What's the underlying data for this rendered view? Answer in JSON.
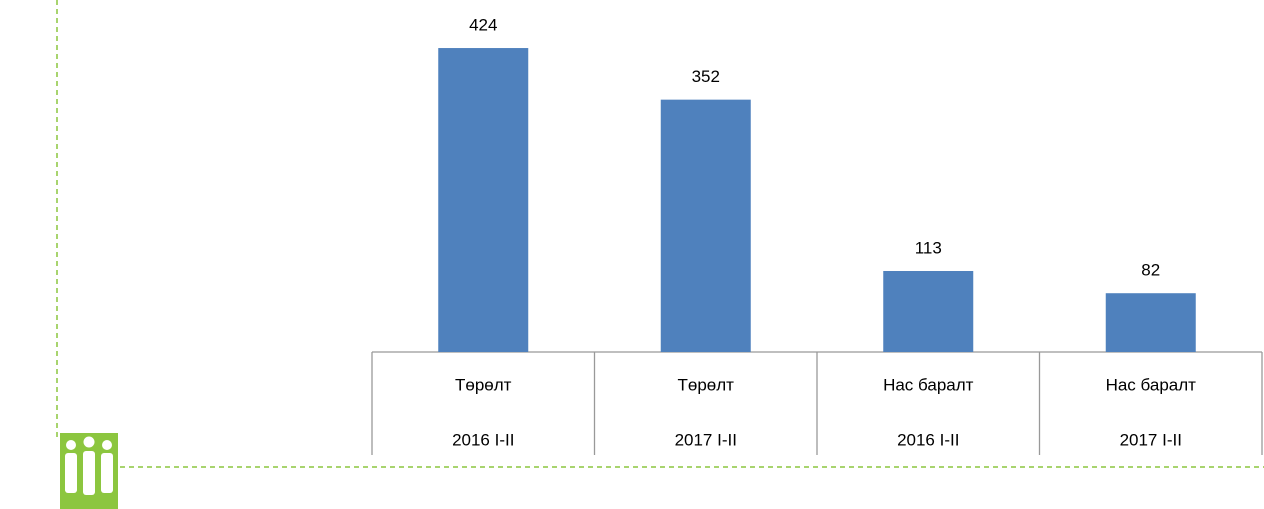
{
  "chart_data": {
    "type": "bar",
    "categories": [
      [
        "Төрөлт",
        "2016 I-II"
      ],
      [
        "Төрөлт",
        "2017 I-II"
      ],
      [
        "Нас баралт",
        "2016 I-II"
      ],
      [
        "Нас баралт",
        "2017 I-II"
      ]
    ],
    "values": [
      424,
      352,
      113,
      82
    ],
    "color": "#4f81bd",
    "ylim": [
      0,
      450
    ]
  }
}
